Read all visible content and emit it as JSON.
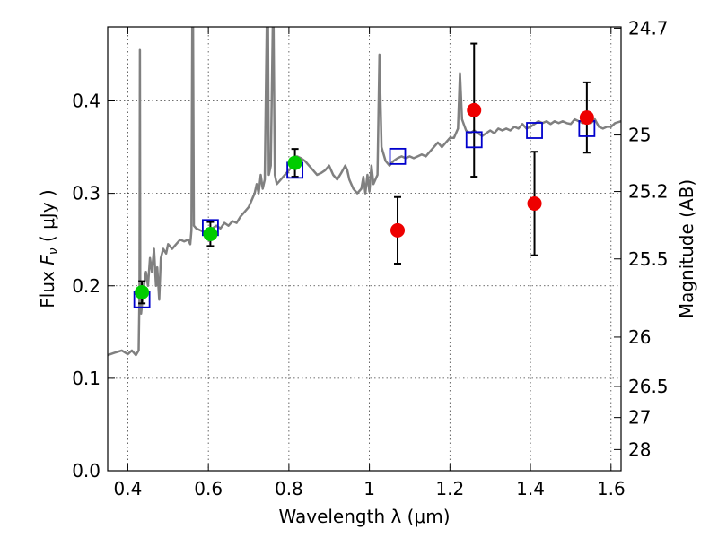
{
  "chart_data": {
    "type": "scatter",
    "xlabel": "Wavelength  λ (μm)",
    "ylabel": {
      "prefix": "Flux  ",
      "symbol": "F",
      "subscript": "ν",
      "suffix": "  ( μJy )"
    },
    "y2label": "Magnitude (AB)",
    "xlim": [
      0.35,
      1.625
    ],
    "ylim": [
      0.0,
      0.48
    ],
    "x_ticks": [
      {
        "value": 0.4,
        "label": "0.4"
      },
      {
        "value": 0.6,
        "label": "0.6"
      },
      {
        "value": 0.8,
        "label": "0.8"
      },
      {
        "value": 1.0,
        "label": "1"
      },
      {
        "value": 1.2,
        "label": "1.2"
      },
      {
        "value": 1.4,
        "label": "1.4"
      },
      {
        "value": 1.6,
        "label": "1.6"
      }
    ],
    "y_ticks": [
      {
        "value": 0.0,
        "label": "0.0"
      },
      {
        "value": 0.1,
        "label": "0.1"
      },
      {
        "value": 0.2,
        "label": "0.2"
      },
      {
        "value": 0.3,
        "label": "0.3"
      },
      {
        "value": 0.4,
        "label": "0.4"
      }
    ],
    "y2_ticks": [
      {
        "value": 24.7,
        "label": "24.7"
      },
      {
        "value": 25.0,
        "label": "25"
      },
      {
        "value": 25.2,
        "label": "25.2"
      },
      {
        "value": 25.5,
        "label": "25.5"
      },
      {
        "value": 26.0,
        "label": "26"
      },
      {
        "value": 26.5,
        "label": "26.5"
      },
      {
        "value": 27.0,
        "label": "27"
      },
      {
        "value": 28.0,
        "label": "28"
      }
    ],
    "grid": true,
    "series": [
      {
        "kind": "line",
        "color": "#808080",
        "points": [
          [
            0.35,
            0.125
          ],
          [
            0.37,
            0.128
          ],
          [
            0.385,
            0.13
          ],
          [
            0.4,
            0.126
          ],
          [
            0.41,
            0.13
          ],
          [
            0.42,
            0.125
          ],
          [
            0.427,
            0.13
          ],
          [
            0.429,
            0.19
          ],
          [
            0.43,
            0.455
          ],
          [
            0.431,
            0.19
          ],
          [
            0.433,
            0.17
          ],
          [
            0.44,
            0.2
          ],
          [
            0.445,
            0.215
          ],
          [
            0.45,
            0.2
          ],
          [
            0.455,
            0.23
          ],
          [
            0.46,
            0.215
          ],
          [
            0.465,
            0.24
          ],
          [
            0.47,
            0.2
          ],
          [
            0.473,
            0.22
          ],
          [
            0.478,
            0.185
          ],
          [
            0.482,
            0.23
          ],
          [
            0.488,
            0.24
          ],
          [
            0.495,
            0.235
          ],
          [
            0.5,
            0.245
          ],
          [
            0.51,
            0.24
          ],
          [
            0.52,
            0.245
          ],
          [
            0.53,
            0.25
          ],
          [
            0.54,
            0.248
          ],
          [
            0.55,
            0.25
          ],
          [
            0.555,
            0.245
          ],
          [
            0.558,
            0.26
          ],
          [
            0.56,
            0.48
          ],
          [
            0.562,
            0.48
          ],
          [
            0.564,
            0.265
          ],
          [
            0.57,
            0.262
          ],
          [
            0.58,
            0.26
          ],
          [
            0.59,
            0.258
          ],
          [
            0.6,
            0.26
          ],
          [
            0.61,
            0.262
          ],
          [
            0.62,
            0.265
          ],
          [
            0.63,
            0.262
          ],
          [
            0.64,
            0.268
          ],
          [
            0.65,
            0.265
          ],
          [
            0.66,
            0.27
          ],
          [
            0.67,
            0.268
          ],
          [
            0.68,
            0.275
          ],
          [
            0.69,
            0.28
          ],
          [
            0.7,
            0.285
          ],
          [
            0.705,
            0.29
          ],
          [
            0.71,
            0.295
          ],
          [
            0.715,
            0.3
          ],
          [
            0.72,
            0.31
          ],
          [
            0.725,
            0.3
          ],
          [
            0.73,
            0.32
          ],
          [
            0.735,
            0.305
          ],
          [
            0.74,
            0.315
          ],
          [
            0.745,
            0.48
          ],
          [
            0.748,
            0.48
          ],
          [
            0.75,
            0.32
          ],
          [
            0.755,
            0.33
          ],
          [
            0.76,
            0.48
          ],
          [
            0.762,
            0.48
          ],
          [
            0.765,
            0.32
          ],
          [
            0.77,
            0.31
          ],
          [
            0.78,
            0.315
          ],
          [
            0.79,
            0.32
          ],
          [
            0.8,
            0.325
          ],
          [
            0.81,
            0.33
          ],
          [
            0.82,
            0.34
          ],
          [
            0.83,
            0.338
          ],
          [
            0.84,
            0.335
          ],
          [
            0.85,
            0.33
          ],
          [
            0.86,
            0.325
          ],
          [
            0.87,
            0.32
          ],
          [
            0.88,
            0.322
          ],
          [
            0.89,
            0.325
          ],
          [
            0.9,
            0.33
          ],
          [
            0.91,
            0.32
          ],
          [
            0.92,
            0.315
          ],
          [
            0.93,
            0.322
          ],
          [
            0.94,
            0.33
          ],
          [
            0.945,
            0.325
          ],
          [
            0.95,
            0.315
          ],
          [
            0.96,
            0.305
          ],
          [
            0.97,
            0.3
          ],
          [
            0.98,
            0.305
          ],
          [
            0.985,
            0.318
          ],
          [
            0.99,
            0.3
          ],
          [
            0.995,
            0.32
          ],
          [
            1.0,
            0.302
          ],
          [
            1.005,
            0.33
          ],
          [
            1.01,
            0.31
          ],
          [
            1.015,
            0.315
          ],
          [
            1.02,
            0.32
          ],
          [
            1.025,
            0.45
          ],
          [
            1.03,
            0.35
          ],
          [
            1.04,
            0.335
          ],
          [
            1.05,
            0.33
          ],
          [
            1.06,
            0.335
          ],
          [
            1.07,
            0.338
          ],
          [
            1.08,
            0.34
          ],
          [
            1.09,
            0.338
          ],
          [
            1.1,
            0.34
          ],
          [
            1.11,
            0.338
          ],
          [
            1.12,
            0.34
          ],
          [
            1.13,
            0.342
          ],
          [
            1.14,
            0.34
          ],
          [
            1.15,
            0.345
          ],
          [
            1.16,
            0.35
          ],
          [
            1.17,
            0.355
          ],
          [
            1.18,
            0.35
          ],
          [
            1.19,
            0.355
          ],
          [
            1.2,
            0.36
          ],
          [
            1.21,
            0.36
          ],
          [
            1.22,
            0.37
          ],
          [
            1.225,
            0.43
          ],
          [
            1.23,
            0.38
          ],
          [
            1.24,
            0.368
          ],
          [
            1.25,
            0.365
          ],
          [
            1.26,
            0.368
          ],
          [
            1.27,
            0.365
          ],
          [
            1.28,
            0.362
          ],
          [
            1.29,
            0.365
          ],
          [
            1.3,
            0.368
          ],
          [
            1.31,
            0.365
          ],
          [
            1.32,
            0.37
          ],
          [
            1.33,
            0.368
          ],
          [
            1.34,
            0.37
          ],
          [
            1.35,
            0.368
          ],
          [
            1.36,
            0.372
          ],
          [
            1.37,
            0.37
          ],
          [
            1.38,
            0.375
          ],
          [
            1.39,
            0.37
          ],
          [
            1.4,
            0.372
          ],
          [
            1.41,
            0.375
          ],
          [
            1.42,
            0.378
          ],
          [
            1.43,
            0.376
          ],
          [
            1.44,
            0.378
          ],
          [
            1.45,
            0.375
          ],
          [
            1.46,
            0.378
          ],
          [
            1.47,
            0.376
          ],
          [
            1.48,
            0.378
          ],
          [
            1.49,
            0.376
          ],
          [
            1.5,
            0.375
          ],
          [
            1.51,
            0.38
          ],
          [
            1.52,
            0.378
          ],
          [
            1.53,
            0.376
          ],
          [
            1.54,
            0.378
          ],
          [
            1.55,
            0.376
          ],
          [
            1.56,
            0.38
          ],
          [
            1.57,
            0.372
          ],
          [
            1.58,
            0.37
          ],
          [
            1.59,
            0.372
          ],
          [
            1.6,
            0.372
          ],
          [
            1.61,
            0.376
          ],
          [
            1.625,
            0.378
          ]
        ]
      },
      {
        "kind": "squares",
        "color": "#0000cc",
        "points": [
          {
            "x": 0.435,
            "y": 0.185
          },
          {
            "x": 0.605,
            "y": 0.263
          },
          {
            "x": 0.815,
            "y": 0.325
          },
          {
            "x": 1.07,
            "y": 0.34
          },
          {
            "x": 1.26,
            "y": 0.358
          },
          {
            "x": 1.41,
            "y": 0.368
          },
          {
            "x": 1.54,
            "y": 0.37
          }
        ]
      },
      {
        "kind": "circles",
        "color": "#00cc00",
        "points": [
          {
            "x": 0.435,
            "y": 0.193,
            "err": 0.012
          },
          {
            "x": 0.605,
            "y": 0.256,
            "err": 0.013
          },
          {
            "x": 0.815,
            "y": 0.333,
            "err": 0.015
          }
        ]
      },
      {
        "kind": "circles",
        "color": "#ee0000",
        "points": [
          {
            "x": 1.07,
            "y": 0.26,
            "err": 0.036
          },
          {
            "x": 1.26,
            "y": 0.39,
            "err": 0.072
          },
          {
            "x": 1.41,
            "y": 0.289,
            "err": 0.056
          },
          {
            "x": 1.54,
            "y": 0.382,
            "err": 0.038
          }
        ]
      }
    ]
  }
}
